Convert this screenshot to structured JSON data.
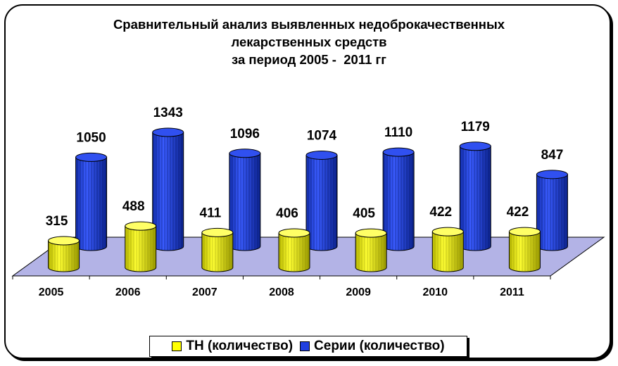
{
  "chart_data": {
    "type": "bar",
    "title": [
      "Сравнительный анализ выявленных недоброкачественных",
      "лекарственных средств",
      "за период 2005 -  2011 гг"
    ],
    "categories": [
      "2005",
      "2006",
      "2007",
      "2008",
      "2009",
      "2010",
      "2011"
    ],
    "series": [
      {
        "name": "ТН (количество)",
        "values": [
          315,
          488,
          411,
          406,
          405,
          422,
          422
        ],
        "color": "#ffff00"
      },
      {
        "name": "Серии (количество)",
        "values": [
          1050,
          1343,
          1096,
          1074,
          1110,
          1179,
          847
        ],
        "color": "#1f3fe0"
      }
    ],
    "ylim": [
      0,
      1400
    ],
    "bar_shape": "3d-cylinder",
    "floor_color": "#b3b3e6",
    "legend_position": "bottom",
    "grid": false
  }
}
